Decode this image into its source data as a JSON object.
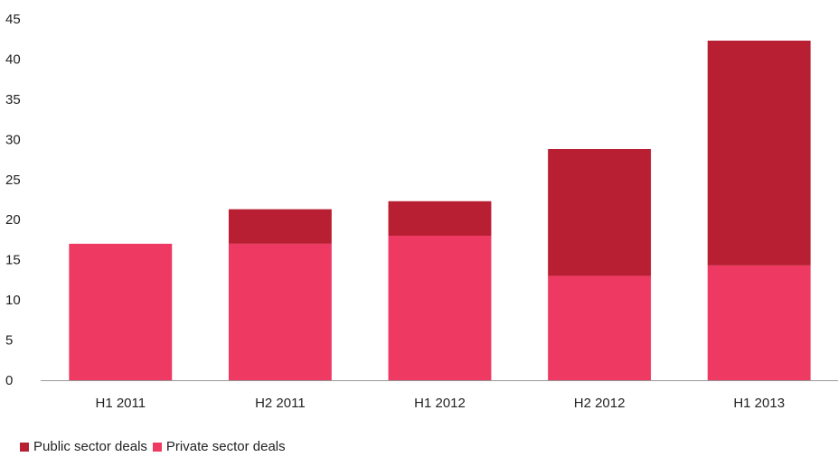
{
  "chart_data": {
    "type": "bar",
    "stacked": true,
    "categories": [
      "H1 2011",
      "H2 2011",
      "H1 2012",
      "H2 2012",
      "H1 2013"
    ],
    "series": [
      {
        "name": "Private sector deals",
        "color": "#ee3a62",
        "values": [
          17,
          17,
          18,
          13,
          14.3
        ]
      },
      {
        "name": "Public sector deals",
        "color": "#b81f33",
        "values": [
          0,
          4.3,
          4.3,
          15.8,
          28
        ]
      }
    ],
    "legend_order": [
      "Public sector deals",
      "Private sector deals"
    ],
    "ylim": [
      0,
      45
    ],
    "yticks": [
      "0",
      "5",
      "10",
      "15",
      "20",
      "25",
      "30",
      "35",
      "40",
      "45"
    ],
    "grid": false,
    "legend_position": "bottom-left",
    "title": "",
    "xlabel": "",
    "ylabel": ""
  }
}
